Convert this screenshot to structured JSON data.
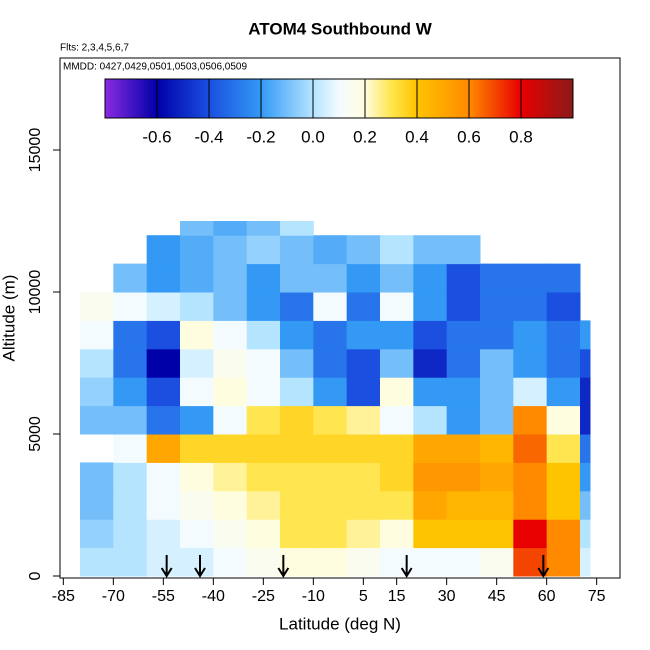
{
  "chart_data": {
    "type": "heatmap",
    "title": "ATOM4 Southbound W",
    "subtitle": "Flts: 2,3,4,5,6,7",
    "annotation": "MMDD: 0427,0429,0501,0503,0506,0509",
    "xlabel": "Latitude (deg N)",
    "ylabel": "Altitude (m)",
    "xlim": [
      -86,
      82
    ],
    "ylim": [
      -70,
      18240
    ],
    "xticks": [
      -85,
      -70,
      -55,
      -40,
      -25,
      -10,
      5,
      15,
      30,
      45,
      60,
      75
    ],
    "yticks": [
      0,
      5000,
      10000,
      15000
    ],
    "x_edges": [
      -80,
      -70,
      -60,
      -50,
      -40,
      -30,
      -20,
      -10,
      0,
      10,
      20,
      30,
      40,
      50,
      60,
      70,
      73
    ],
    "y_edges": [
      0,
      1000,
      2000,
      3000,
      4000,
      5000,
      6000,
      7000,
      8000,
      9000,
      10000,
      11000,
      12000,
      12500
    ],
    "z": [
      [
        0,
        0,
        0.05,
        0.05,
        0.1,
        0.15,
        0.2,
        0.2,
        0.15,
        0.1,
        0.1,
        0.1,
        0.15,
        0.7,
        0.6,
        0.05
      ],
      [
        -0.05,
        0,
        0.05,
        0.1,
        0.15,
        0.2,
        0.3,
        0.3,
        0.25,
        0.2,
        0.4,
        0.4,
        0.4,
        0.8,
        0.6,
        0
      ],
      [
        -0.1,
        0,
        0.1,
        0.15,
        0.2,
        0.25,
        0.3,
        0.3,
        0.3,
        0.3,
        0.5,
        0.45,
        0.45,
        0.6,
        0.4,
        -0.1
      ],
      [
        -0.1,
        0,
        0.1,
        0.2,
        0.25,
        0.3,
        0.3,
        0.3,
        0.3,
        0.35,
        0.55,
        0.55,
        0.5,
        0.6,
        0.4,
        -0.2
      ],
      [
        null,
        0.1,
        0.5,
        0.35,
        0.35,
        0.35,
        0.35,
        0.35,
        0.35,
        0.35,
        0.5,
        0.5,
        0.45,
        0.65,
        0.3,
        -0.3
      ],
      [
        -0.1,
        -0.1,
        -0.3,
        -0.2,
        0.1,
        0.3,
        0.35,
        0.3,
        0.25,
        0.1,
        0,
        -0.2,
        -0.1,
        0.6,
        0.2,
        -0.5
      ],
      [
        -0.05,
        -0.2,
        -0.4,
        0.1,
        0.2,
        0.1,
        0,
        -0.2,
        -0.4,
        0.2,
        -0.2,
        -0.2,
        -0.1,
        0.05,
        -0.2,
        -0.5
      ],
      [
        0,
        -0.3,
        -0.6,
        0.05,
        0.15,
        0.1,
        -0.1,
        -0.3,
        -0.4,
        -0.1,
        -0.5,
        -0.3,
        -0.1,
        -0.2,
        -0.3,
        -0.4
      ],
      [
        0.1,
        -0.3,
        -0.4,
        0.2,
        0.1,
        0,
        -0.2,
        -0.3,
        -0.2,
        -0.2,
        -0.4,
        -0.3,
        -0.3,
        -0.2,
        -0.3,
        -0.2
      ],
      [
        0.15,
        0.1,
        0.05,
        0,
        -0.1,
        -0.2,
        -0.3,
        0.1,
        -0.3,
        0.1,
        -0.2,
        -0.4,
        -0.3,
        -0.3,
        -0.4,
        null
      ],
      [
        null,
        -0.1,
        -0.2,
        -0.15,
        -0.1,
        -0.2,
        -0.1,
        -0.1,
        -0.2,
        -0.1,
        -0.2,
        -0.4,
        -0.3,
        -0.3,
        -0.3,
        null
      ],
      [
        null,
        null,
        -0.2,
        -0.15,
        -0.1,
        -0.05,
        -0.1,
        -0.15,
        -0.1,
        0,
        -0.1,
        -0.1,
        null,
        null,
        null,
        null
      ],
      [
        null,
        null,
        null,
        -0.1,
        -0.15,
        -0.1,
        0,
        null,
        null,
        null,
        null,
        null,
        null,
        null,
        null,
        null
      ]
    ],
    "markers": [
      -54,
      -44,
      -19,
      18,
      59
    ],
    "colorbar_lim": [
      -0.8,
      1.0
    ],
    "colorbar_ticks": [
      -0.6,
      -0.4,
      -0.2,
      {
        "value": 0,
        "label": "0.0"
      },
      0.2,
      0.4,
      0.6,
      0.8
    ],
    "colorscale": [
      {
        "value": -0.8,
        "color": "#8a2be2"
      },
      {
        "value": -0.6,
        "color": "#0000a8"
      },
      {
        "value": -0.4,
        "color": "#1a4fe0"
      },
      {
        "value": -0.2,
        "color": "#3399f5"
      },
      {
        "value": 0,
        "color": "#b5e4ff"
      },
      {
        "value": 0.1,
        "color": "#f4fbff"
      },
      {
        "value": 0.2,
        "color": "#fffde0"
      },
      {
        "value": 0.3,
        "color": "#ffe650"
      },
      {
        "value": 0.4,
        "color": "#ffc400"
      },
      {
        "value": 0.6,
        "color": "#ff8a00"
      },
      {
        "value": 0.8,
        "color": "#e80000"
      },
      {
        "value": 1.0,
        "color": "#8b1a1a"
      }
    ]
  }
}
